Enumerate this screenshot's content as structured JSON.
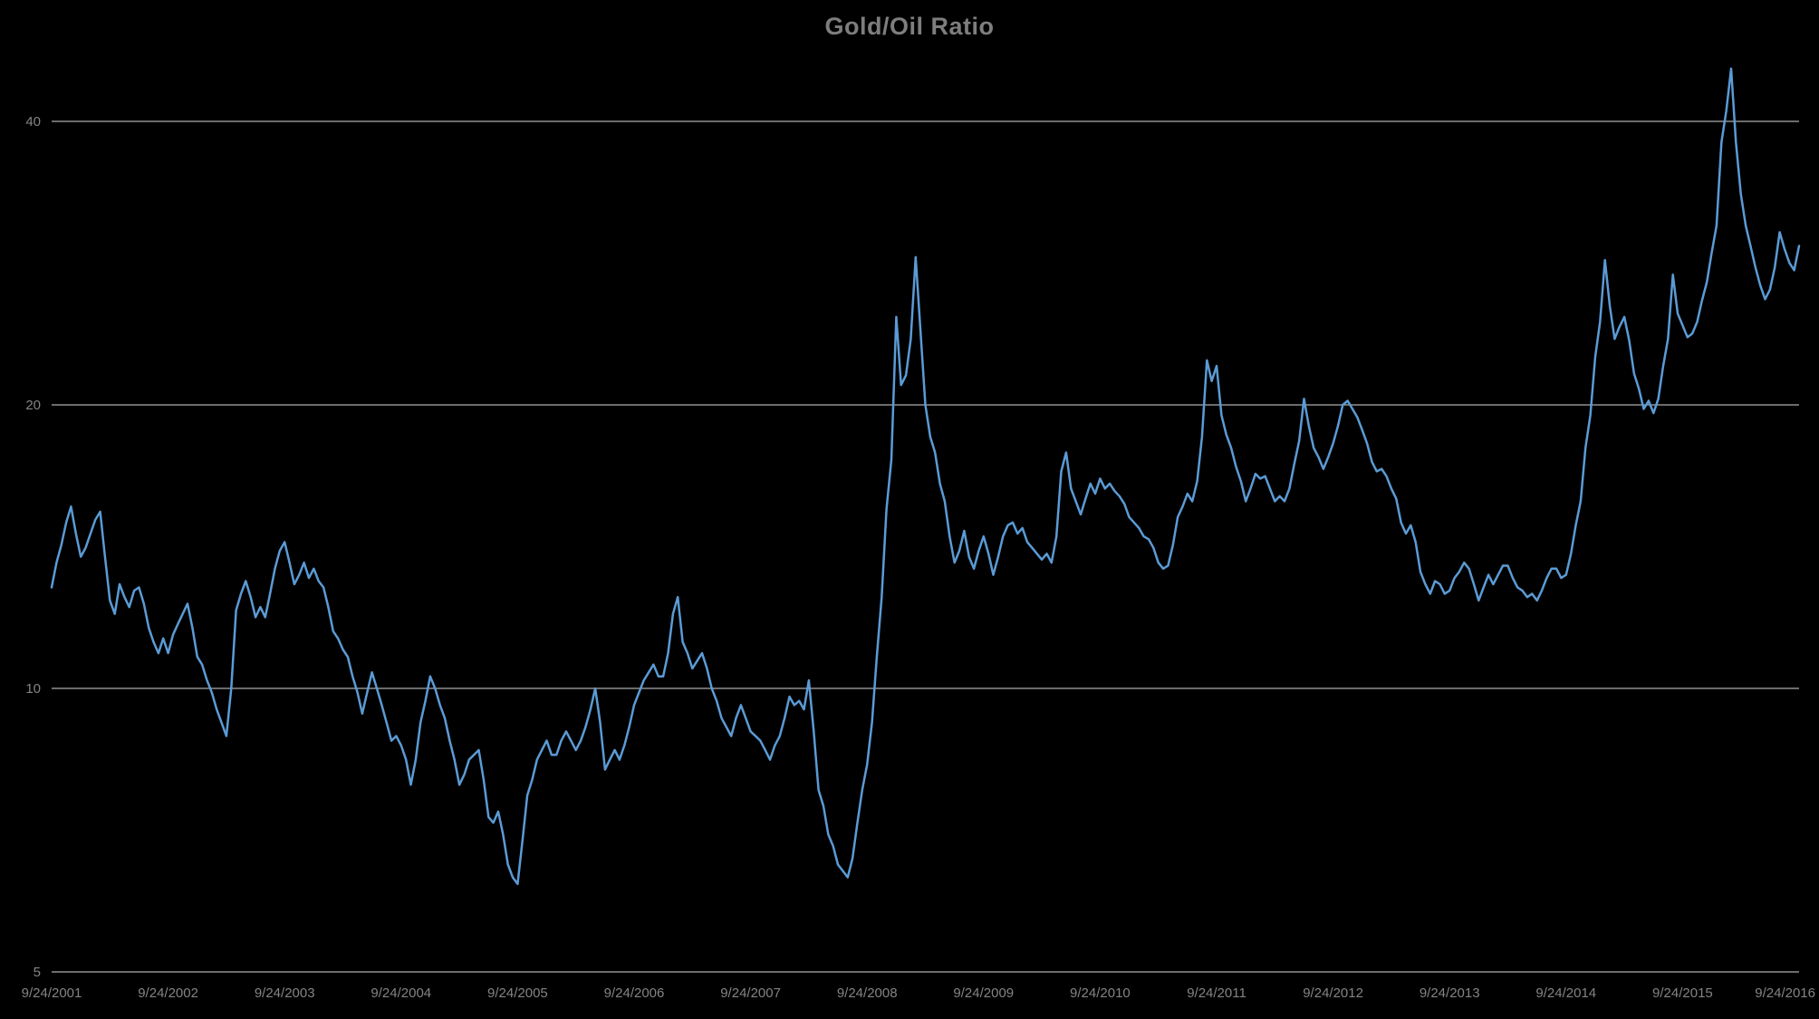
{
  "colors": {
    "background": "#000000",
    "title": "#7e7e7e",
    "axis_label": "#848484",
    "gridline": "#d9d9d9",
    "series": "#5b9bd5"
  },
  "chart_data": {
    "type": "line",
    "title": "Gold/Oil Ratio",
    "series_name": "Gold/Oil Ratio",
    "legend": "none",
    "grid": "horizontal",
    "y_scale": "log2",
    "y_ticks": [
      5,
      10,
      20,
      40
    ],
    "y_gridlines": [
      10,
      20,
      40
    ],
    "ylim": [
      5,
      48
    ],
    "x_start": "9/24/2001",
    "x_end": "9/24/2016",
    "points_per_year": 24,
    "x_tick_labels": [
      "9/24/2001",
      "9/24/2002",
      "9/24/2003",
      "9/24/2004",
      "9/24/2005",
      "9/24/2006",
      "9/24/2007",
      "9/24/2008",
      "9/24/2009",
      "9/24/2010",
      "9/24/2011",
      "9/24/2012",
      "9/24/2013",
      "9/24/2014",
      "9/24/2015",
      "9/24/2016"
    ],
    "values": [
      12.8,
      13.6,
      14.2,
      15.0,
      15.6,
      14.6,
      13.8,
      14.1,
      14.6,
      15.1,
      15.4,
      13.8,
      12.4,
      12.0,
      12.9,
      12.5,
      12.2,
      12.7,
      12.8,
      12.3,
      11.6,
      11.2,
      10.9,
      11.3,
      10.9,
      11.4,
      11.7,
      12.0,
      12.3,
      11.6,
      10.8,
      10.6,
      10.2,
      9.9,
      9.5,
      9.2,
      8.9,
      10.0,
      12.1,
      12.6,
      13.0,
      12.5,
      11.9,
      12.2,
      11.9,
      12.6,
      13.4,
      14.0,
      14.3,
      13.6,
      12.9,
      13.2,
      13.6,
      13.1,
      13.4,
      13.0,
      12.8,
      12.2,
      11.5,
      11.3,
      11.0,
      10.8,
      10.3,
      9.9,
      9.4,
      9.9,
      10.4,
      10.0,
      9.6,
      9.2,
      8.8,
      8.9,
      8.7,
      8.4,
      7.9,
      8.4,
      9.2,
      9.7,
      10.3,
      10.0,
      9.6,
      9.3,
      8.8,
      8.4,
      7.9,
      8.1,
      8.4,
      8.5,
      8.6,
      8.0,
      7.3,
      7.2,
      7.4,
      7.0,
      6.5,
      6.3,
      6.2,
      6.9,
      7.7,
      8.0,
      8.4,
      8.6,
      8.8,
      8.5,
      8.5,
      8.8,
      9.0,
      8.8,
      8.6,
      8.8,
      9.1,
      9.5,
      10.0,
      9.2,
      8.2,
      8.4,
      8.6,
      8.4,
      8.7,
      9.1,
      9.6,
      9.9,
      10.2,
      10.4,
      10.6,
      10.3,
      10.3,
      10.9,
      12.0,
      12.5,
      11.2,
      10.9,
      10.5,
      10.7,
      10.9,
      10.5,
      10.0,
      9.7,
      9.3,
      9.1,
      8.9,
      9.3,
      9.6,
      9.3,
      9.0,
      8.9,
      8.8,
      8.6,
      8.4,
      8.7,
      8.9,
      9.3,
      9.8,
      9.6,
      9.7,
      9.5,
      10.2,
      9.0,
      7.8,
      7.5,
      7.0,
      6.8,
      6.5,
      6.4,
      6.3,
      6.6,
      7.2,
      7.8,
      8.3,
      9.2,
      10.8,
      12.5,
      15.5,
      17.5,
      24.8,
      21.0,
      21.5,
      23.5,
      28.7,
      24.0,
      20.0,
      18.5,
      17.8,
      16.5,
      15.8,
      14.5,
      13.6,
      14.0,
      14.7,
      13.8,
      13.4,
      14.0,
      14.5,
      13.9,
      13.2,
      13.8,
      14.5,
      14.9,
      15.0,
      14.6,
      14.8,
      14.3,
      14.1,
      13.9,
      13.7,
      13.9,
      13.6,
      14.5,
      17.0,
      17.8,
      16.3,
      15.8,
      15.3,
      15.9,
      16.5,
      16.1,
      16.7,
      16.3,
      16.5,
      16.2,
      16.0,
      15.7,
      15.2,
      15.0,
      14.8,
      14.5,
      14.4,
      14.1,
      13.6,
      13.4,
      13.5,
      14.2,
      15.2,
      15.6,
      16.1,
      15.8,
      16.6,
      18.5,
      22.3,
      21.2,
      22.0,
      19.5,
      18.6,
      18.0,
      17.2,
      16.6,
      15.8,
      16.3,
      16.9,
      16.7,
      16.8,
      16.3,
      15.8,
      16.0,
      15.8,
      16.3,
      17.3,
      18.3,
      20.3,
      19.0,
      18.0,
      17.6,
      17.1,
      17.6,
      18.2,
      19.0,
      20.0,
      20.2,
      19.8,
      19.4,
      18.8,
      18.2,
      17.4,
      17.0,
      17.1,
      16.8,
      16.3,
      15.9,
      15.0,
      14.6,
      14.9,
      14.3,
      13.3,
      12.9,
      12.6,
      13.0,
      12.9,
      12.6,
      12.7,
      13.1,
      13.3,
      13.6,
      13.4,
      12.9,
      12.4,
      12.8,
      13.2,
      12.9,
      13.2,
      13.5,
      13.5,
      13.1,
      12.8,
      12.7,
      12.5,
      12.6,
      12.4,
      12.7,
      13.1,
      13.4,
      13.4,
      13.1,
      13.2,
      13.9,
      14.9,
      15.8,
      18.0,
      19.5,
      22.5,
      24.5,
      28.5,
      25.5,
      23.5,
      24.2,
      24.8,
      23.4,
      21.6,
      20.8,
      19.8,
      20.2,
      19.6,
      20.3,
      22.0,
      23.5,
      27.5,
      25.0,
      24.3,
      23.6,
      23.8,
      24.5,
      25.8,
      27.0,
      29.0,
      31.0,
      38.0,
      41.0,
      45.5,
      38.0,
      33.5,
      31.0,
      29.5,
      28.0,
      26.8,
      25.9,
      26.5,
      28.0,
      30.5,
      29.3,
      28.3,
      27.8,
      29.5
    ]
  }
}
